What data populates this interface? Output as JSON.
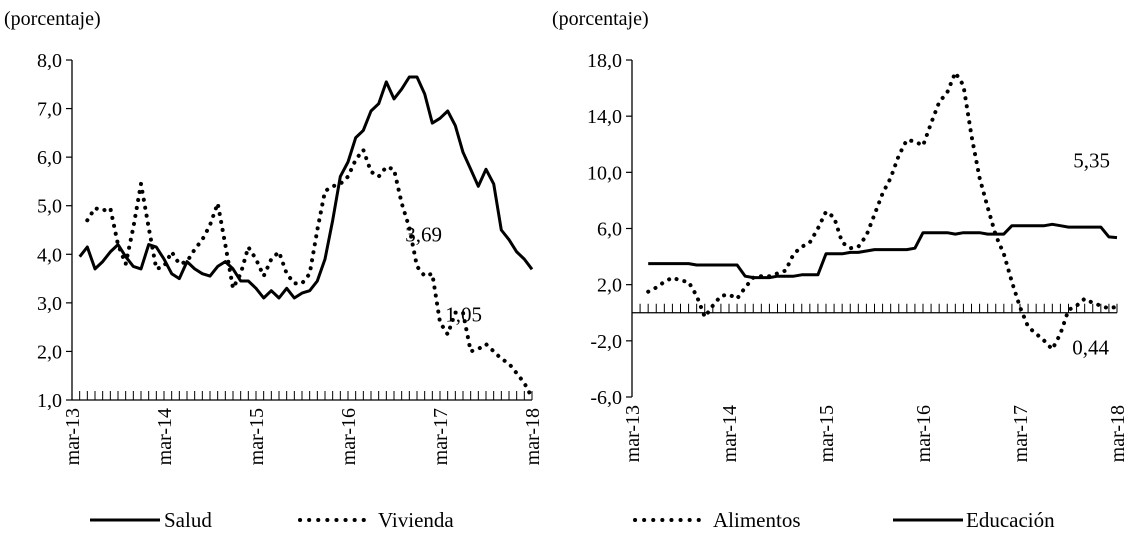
{
  "chart_data": [
    {
      "type": "line",
      "unit_label": "(porcentaje)",
      "x_tick_labels": [
        "mar-13",
        "mar-14",
        "mar-15",
        "mar-16",
        "mar-17",
        "mar-18"
      ],
      "ylim": [
        1.0,
        8.0
      ],
      "y_tick_labels": [
        "1,0",
        "2,0",
        "3,0",
        "4,0",
        "5,0",
        "6,0",
        "7,0",
        "8,0"
      ],
      "grid": false,
      "legend_position": "bottom",
      "series": [
        {
          "name": "Salud",
          "style": "solid",
          "values": [
            3.95,
            4.15,
            3.7,
            3.85,
            4.05,
            4.2,
            3.95,
            3.75,
            3.7,
            4.2,
            4.15,
            3.9,
            3.6,
            3.5,
            3.85,
            3.7,
            3.6,
            3.55,
            3.75,
            3.85,
            3.7,
            3.45,
            3.45,
            3.3,
            3.1,
            3.25,
            3.1,
            3.3,
            3.1,
            3.2,
            3.25,
            3.45,
            3.9,
            4.7,
            5.6,
            5.9,
            6.4,
            6.55,
            6.95,
            7.1,
            7.55,
            7.2,
            7.4,
            7.65,
            7.65,
            7.3,
            6.7,
            6.8,
            6.95,
            6.65,
            6.1,
            5.75,
            5.4,
            5.75,
            5.45,
            4.5,
            4.3,
            4.05,
            3.9,
            3.69
          ],
          "end_label": "3,69"
        },
        {
          "name": "Vivienda",
          "style": "dotted",
          "values": [
            4.7,
            4.95,
            4.9,
            4.95,
            4.2,
            3.8,
            4.55,
            5.45,
            4.55,
            3.7,
            3.75,
            4.05,
            3.8,
            3.85,
            4.1,
            4.3,
            4.6,
            5.05,
            4.2,
            3.3,
            3.6,
            4.15,
            3.9,
            3.55,
            3.9,
            4.05,
            3.6,
            3.4,
            3.4,
            3.6,
            4.5,
            5.3,
            5.4,
            5.45,
            5.6,
            5.95,
            6.15,
            5.7,
            5.6,
            5.8,
            5.75,
            5.05,
            4.55,
            3.75,
            3.55,
            3.6,
            2.6,
            2.35,
            2.8,
            2.8,
            2.0,
            2.05,
            2.15,
            2.0,
            1.85,
            1.75,
            1.55,
            1.35,
            1.05
          ],
          "end_label": "1,05"
        }
      ]
    },
    {
      "type": "line",
      "unit_label": "(porcentaje)",
      "x_tick_labels": [
        "mar-13",
        "mar-14",
        "mar-15",
        "mar-16",
        "mar-17",
        "mar-18"
      ],
      "ylim": [
        -6.0,
        18.0
      ],
      "y_tick_labels": [
        "-6,0",
        "-2,0",
        "2,0",
        "6,0",
        "10,0",
        "14,0",
        "18,0"
      ],
      "grid": false,
      "legend_position": "bottom",
      "series": [
        {
          "name": "Alimentos",
          "style": "dotted",
          "values": [
            1.5,
            1.8,
            2.2,
            2.5,
            2.3,
            2.2,
            1.2,
            -0.3,
            0.5,
            1.2,
            1.3,
            1.0,
            1.8,
            2.5,
            2.6,
            2.6,
            2.8,
            3.0,
            4.2,
            4.7,
            5.0,
            6.0,
            7.2,
            6.8,
            5.0,
            4.6,
            4.7,
            5.5,
            7.0,
            8.5,
            9.6,
            11.2,
            12.3,
            12.2,
            11.9,
            13.5,
            15.0,
            15.7,
            17.1,
            16.2,
            12.6,
            9.6,
            7.5,
            5.5,
            4.2,
            2.2,
            0.4,
            -1.0,
            -1.5,
            -2.0,
            -2.6,
            -1.5,
            0.2,
            0.5,
            1.0,
            0.7,
            0.5,
            0.3,
            0.44
          ],
          "end_label": "0,44"
        },
        {
          "name": "Educación",
          "style": "solid",
          "values": [
            3.5,
            3.5,
            3.5,
            3.5,
            3.5,
            3.5,
            3.4,
            3.4,
            3.4,
            3.4,
            3.4,
            3.4,
            2.6,
            2.5,
            2.5,
            2.5,
            2.6,
            2.6,
            2.6,
            2.7,
            2.7,
            2.7,
            4.2,
            4.2,
            4.2,
            4.3,
            4.3,
            4.4,
            4.5,
            4.5,
            4.5,
            4.5,
            4.5,
            4.6,
            5.7,
            5.7,
            5.7,
            5.7,
            5.6,
            5.7,
            5.7,
            5.7,
            5.6,
            5.6,
            5.6,
            6.2,
            6.2,
            6.2,
            6.2,
            6.2,
            6.3,
            6.2,
            6.1,
            6.1,
            6.1,
            6.1,
            6.1,
            5.4,
            5.35
          ],
          "end_label": "5,35"
        }
      ]
    }
  ],
  "legend_left": [
    "Salud",
    "Vivienda"
  ],
  "legend_right": [
    "Alimentos",
    "Educación"
  ]
}
